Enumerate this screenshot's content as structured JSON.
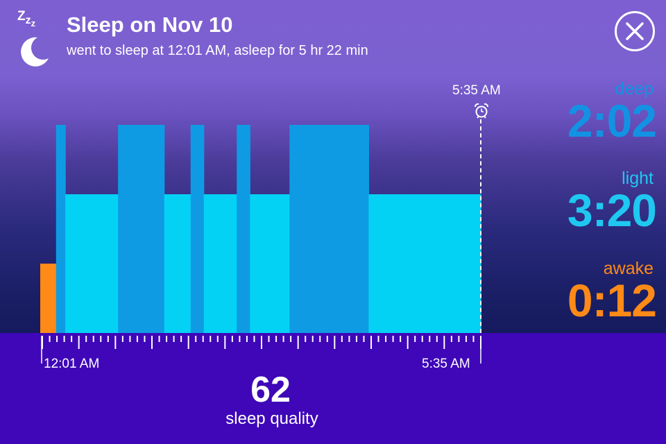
{
  "header": {
    "title": "Sleep on Nov 10",
    "subtitle": "went to sleep at 12:01 AM, asleep for 5 hr 22 min",
    "icon": "sleep-moon-icon",
    "close_icon": "close-icon"
  },
  "alarm": {
    "time": "5:35 AM",
    "icon": "alarm-clock-icon"
  },
  "stats": {
    "deep": {
      "label": "deep",
      "value": "2:02",
      "color": "#1392e3"
    },
    "light": {
      "label": "light",
      "value": "3:20",
      "color": "#1fc8f0"
    },
    "awake": {
      "label": "awake",
      "value": "0:12",
      "color": "#ff8a17"
    }
  },
  "axis": {
    "start": "12:01 AM",
    "end": "5:35 AM"
  },
  "quality": {
    "value": "62",
    "label": "sleep quality"
  },
  "chart_data": {
    "type": "bar",
    "xlabel": "",
    "ylabel": "",
    "time_unit": "minutes",
    "levels": [
      "awake",
      "light",
      "deep"
    ],
    "colors": {
      "awake": "#ff8a17",
      "light": "#03d2f5",
      "deep": "#0f9be4"
    },
    "segments": [
      {
        "stage": "awake",
        "start": 0,
        "end": 12
      },
      {
        "stage": "deep",
        "start": 12,
        "end": 19
      },
      {
        "stage": "light",
        "start": 19,
        "end": 59
      },
      {
        "stage": "deep",
        "start": 59,
        "end": 94
      },
      {
        "stage": "light",
        "start": 94,
        "end": 114
      },
      {
        "stage": "deep",
        "start": 114,
        "end": 124
      },
      {
        "stage": "light",
        "start": 124,
        "end": 149
      },
      {
        "stage": "deep",
        "start": 149,
        "end": 159
      },
      {
        "stage": "light",
        "start": 159,
        "end": 189
      },
      {
        "stage": "deep",
        "start": 189,
        "end": 249
      },
      {
        "stage": "light",
        "start": 249,
        "end": 334
      }
    ],
    "x_range": [
      0,
      334
    ],
    "x_start_label": "12:01 AM",
    "x_end_label": "5:35 AM"
  }
}
